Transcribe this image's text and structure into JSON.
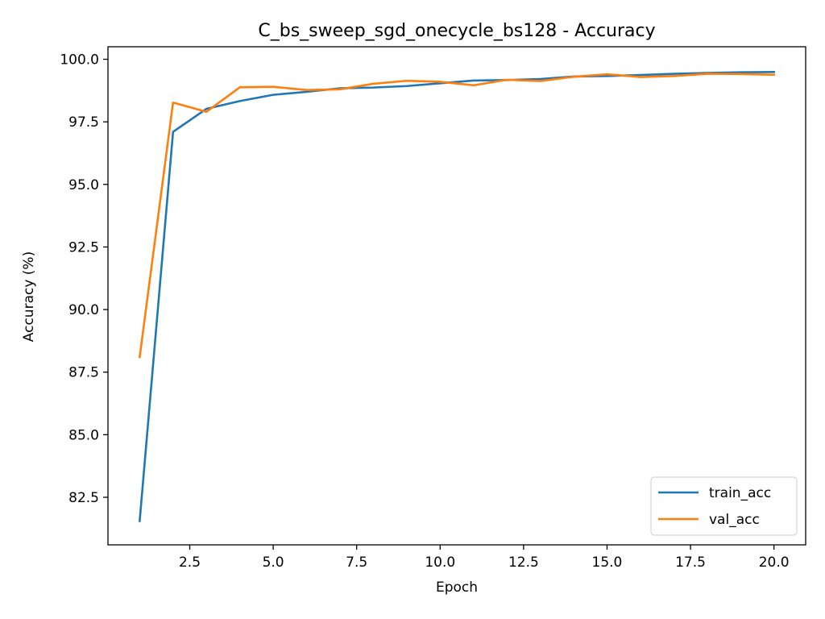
{
  "chart_data": {
    "type": "line",
    "title": "C_bs_sweep_sgd_onecycle_bs128 - Accuracy",
    "xlabel": "Epoch",
    "ylabel": "Accuracy (%)",
    "xlim": [
      0.05,
      20.95
    ],
    "ylim": [
      80.6,
      100.5
    ],
    "xticks": [
      2.5,
      5.0,
      7.5,
      10.0,
      12.5,
      15.0,
      17.5,
      20.0
    ],
    "xtick_labels": [
      "2.5",
      "5.0",
      "7.5",
      "10.0",
      "12.5",
      "15.0",
      "17.5",
      "20.0"
    ],
    "yticks": [
      82.5,
      85.0,
      87.5,
      90.0,
      92.5,
      95.0,
      97.5,
      100.0
    ],
    "ytick_labels": [
      "82.5",
      "85.0",
      "87.5",
      "90.0",
      "92.5",
      "95.0",
      "97.5",
      "100.0"
    ],
    "grid": false,
    "legend_position": "lower-right",
    "x": [
      1,
      2,
      3,
      4,
      5,
      6,
      7,
      8,
      9,
      10,
      11,
      12,
      13,
      14,
      15,
      16,
      17,
      18,
      19,
      20
    ],
    "series": [
      {
        "name": "train_acc",
        "color": "#1f77b4",
        "values": [
          81.55,
          97.1,
          98.02,
          98.33,
          98.58,
          98.7,
          98.84,
          98.87,
          98.93,
          99.04,
          99.15,
          99.17,
          99.21,
          99.31,
          99.33,
          99.37,
          99.42,
          99.45,
          99.48,
          99.49
        ]
      },
      {
        "name": "val_acc",
        "color": "#ff7f0e",
        "values": [
          88.1,
          98.27,
          97.9,
          98.88,
          98.9,
          98.77,
          98.8,
          99.02,
          99.14,
          99.1,
          98.96,
          99.18,
          99.13,
          99.3,
          99.4,
          99.29,
          99.33,
          99.42,
          99.41,
          99.38
        ]
      }
    ]
  }
}
